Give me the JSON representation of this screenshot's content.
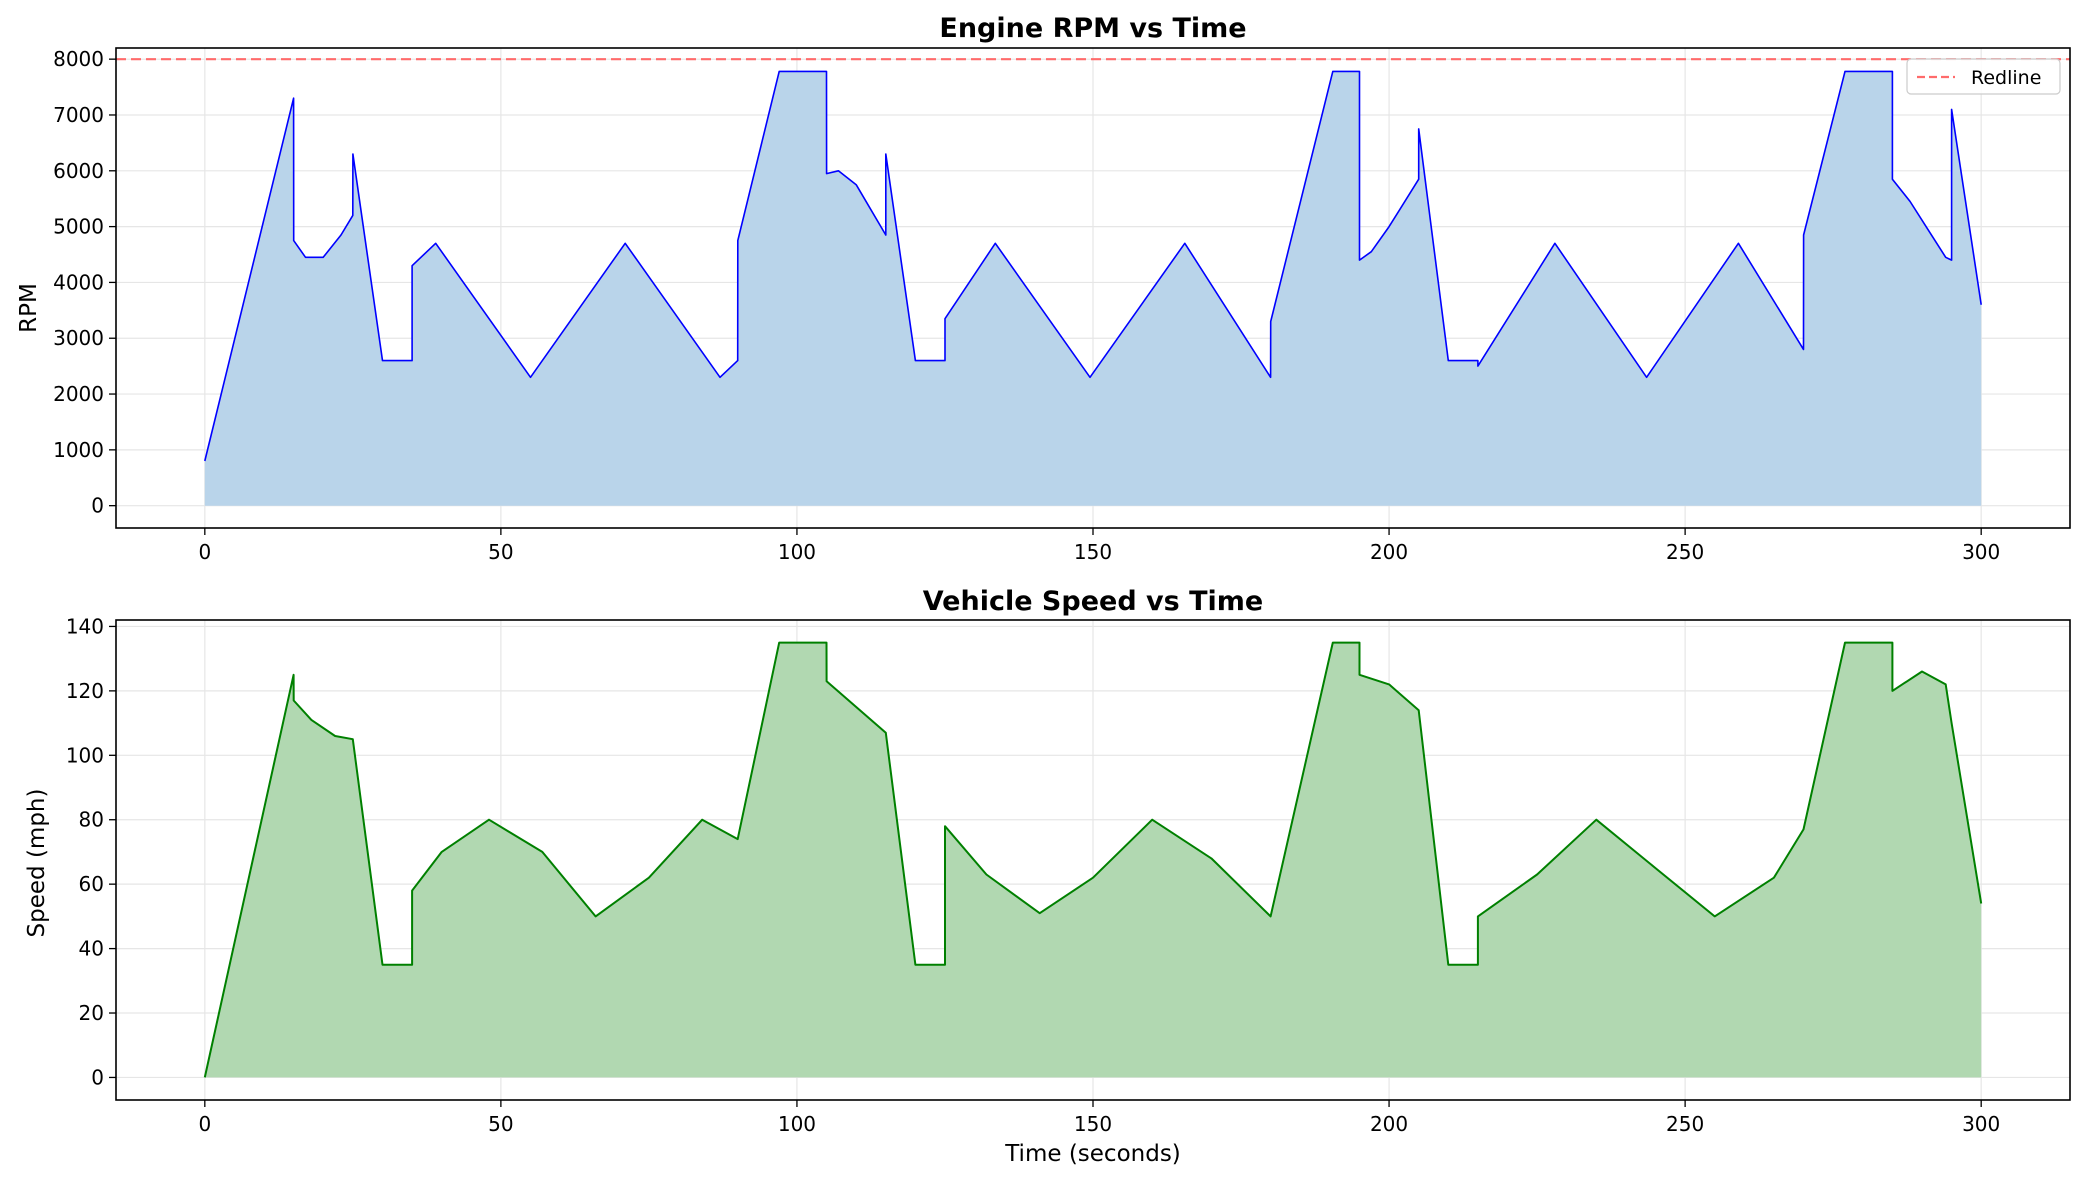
{
  "colors": {
    "rpm_line": "#0000ff",
    "rpm_fill": "#b9d4ea",
    "speed_line": "#008000",
    "speed_fill": "#b1d8b1",
    "redline": "#ff6b6b",
    "grid": "#e6e6e6"
  },
  "chart_data": [
    {
      "type": "area",
      "title": "Engine RPM vs Time",
      "xlabel": "",
      "ylabel": "RPM",
      "xlim": [
        -15,
        315
      ],
      "ylim": [
        -400,
        8200
      ],
      "xticks": [
        0,
        50,
        100,
        150,
        200,
        250,
        300
      ],
      "yticks": [
        0,
        1000,
        2000,
        3000,
        4000,
        5000,
        6000,
        7000,
        8000
      ],
      "grid": true,
      "legend": {
        "placement": "top-right",
        "entries": [
          "Redline"
        ]
      },
      "reference_lines": [
        {
          "name": "Redline",
          "y": 8000,
          "style": "dashed"
        }
      ],
      "series": [
        {
          "name": "",
          "x": [
            0,
            15,
            15.01,
            17,
            20,
            23,
            25,
            25.01,
            30,
            35,
            35.01,
            39,
            55,
            71,
            87,
            90,
            90.01,
            97,
            105,
            105.01,
            107,
            110,
            115,
            115.01,
            120,
            125,
            125.01,
            133.5,
            149.5,
            165.5,
            180,
            180.01,
            190.5,
            195,
            195.01,
            197,
            200,
            205,
            205.01,
            210,
            215,
            215.01,
            228,
            243.5,
            259,
            270,
            270.01,
            277,
            285,
            285.01,
            288,
            291,
            294,
            295,
            295.01,
            300
          ],
          "y": [
            800,
            7300,
            4750,
            4450,
            4450,
            4850,
            5200,
            6300,
            2600,
            2600,
            4300,
            4700,
            2300,
            4700,
            2300,
            2600,
            4750,
            7780,
            7780,
            5950,
            6000,
            5750,
            4850,
            6300,
            2600,
            2600,
            3350,
            4700,
            2300,
            4700,
            2300,
            3300,
            7780,
            7780,
            4400,
            4550,
            5000,
            5850,
            6750,
            2600,
            2600,
            2500,
            4700,
            2300,
            4700,
            2800,
            4850,
            7780,
            7780,
            5850,
            5450,
            4950,
            4450,
            4400,
            7100,
            3600
          ]
        }
      ]
    },
    {
      "type": "area",
      "title": "Vehicle Speed vs Time",
      "xlabel": "Time (seconds)",
      "ylabel": "Speed (mph)",
      "xlim": [
        -15,
        315
      ],
      "ylim": [
        -7,
        142
      ],
      "xticks": [
        0,
        50,
        100,
        150,
        200,
        250,
        300
      ],
      "yticks": [
        0,
        20,
        40,
        60,
        80,
        100,
        120,
        140
      ],
      "grid": true,
      "series": [
        {
          "name": "",
          "x": [
            0,
            15,
            15.01,
            18,
            22,
            25,
            30,
            35,
            35.01,
            40,
            48,
            57,
            66,
            75,
            84,
            90,
            97,
            105,
            105.01,
            110,
            115,
            120,
            125,
            125.01,
            132,
            141,
            150,
            160,
            170,
            180,
            190.5,
            195,
            195.01,
            200,
            205,
            210,
            215,
            215.01,
            225,
            235,
            245,
            255,
            265,
            270,
            277,
            285,
            285.01,
            290,
            294,
            295,
            300
          ],
          "y": [
            0,
            125,
            117,
            111,
            106,
            105,
            35,
            35,
            58,
            70,
            80,
            70,
            50,
            62,
            80,
            74,
            135,
            135,
            123,
            115,
            107,
            35,
            35,
            78,
            63,
            51,
            62,
            80,
            68,
            50,
            135,
            135,
            125,
            122,
            114,
            35,
            35,
            50,
            63,
            80,
            65,
            50,
            62,
            77,
            135,
            135,
            120,
            126,
            122,
            110,
            54
          ]
        }
      ]
    }
  ]
}
